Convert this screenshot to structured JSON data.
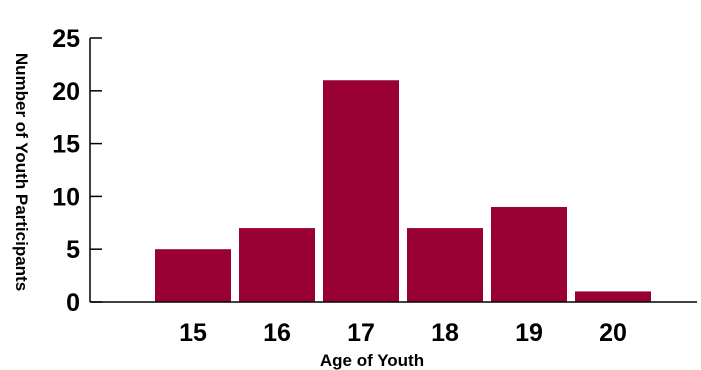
{
  "chart_data": {
    "type": "bar",
    "title": "",
    "xlabel": "Age of Youth",
    "ylabel": "Number of Youth Participants",
    "categories": [
      "15",
      "16",
      "17",
      "18",
      "19",
      "20"
    ],
    "values": [
      5,
      7,
      21,
      7,
      9,
      1
    ],
    "ylim": [
      0,
      25
    ],
    "yticks": [
      "0",
      "5",
      "10",
      "15",
      "20",
      "25"
    ],
    "grid": false,
    "legend": "none",
    "bar_color": "#990033"
  }
}
